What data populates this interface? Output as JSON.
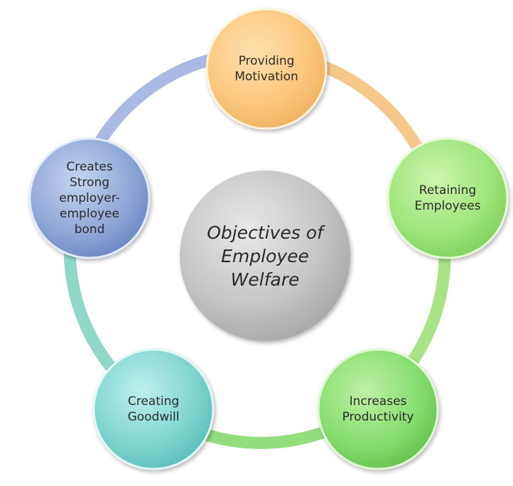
{
  "center": {
    "label": "Objectives of\nEmployee\nWelfare",
    "color": "#c4c4c4"
  },
  "nodes": [
    {
      "id": "providing-motivation",
      "label": "Providing\nMotivation",
      "color": "#fbc77c"
    },
    {
      "id": "retaining-employees",
      "label": "Retaining\nEmployees",
      "color": "#9ee57a"
    },
    {
      "id": "increases-productivity",
      "label": "Increases\nProductivity",
      "color": "#86dd6e"
    },
    {
      "id": "creating-goodwill",
      "label": "Creating\nGoodwill",
      "color": "#7fd4cf"
    },
    {
      "id": "creates-strong-bond",
      "label": "Creates\nStrong\nemployer-\nemployee\nbond",
      "color": "#8ea7d6"
    }
  ],
  "ring_colors": [
    "#f7c98a",
    "#a9e387",
    "#8fdc7a",
    "#8cd8c8",
    "#a7b8e2"
  ]
}
